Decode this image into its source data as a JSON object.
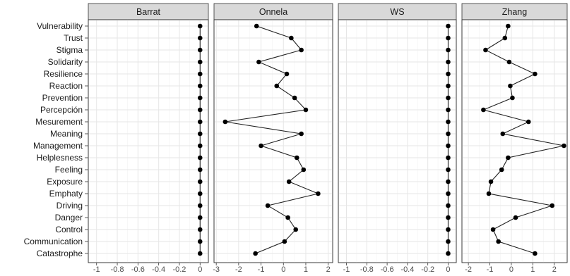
{
  "chart_data": {
    "type": "scatter",
    "connected": true,
    "facets": [
      "Barrat",
      "Onnela",
      "WS",
      "Zhang"
    ],
    "categories": [
      "Vulnerability",
      "Trust",
      "Stigma",
      "Solidarity",
      "Resilience",
      "Reaction",
      "Prevention",
      "Percepción",
      "Mesurement",
      "Meaning",
      "Management",
      "Helplesness",
      "Feeling",
      "Exposure",
      "Emphaty",
      "Driving",
      "Danger",
      "Control",
      "Communication",
      "Catastrophe"
    ],
    "panels": [
      {
        "facet": "Barrat",
        "xlim": [
          -1.08,
          0.08
        ],
        "ticks": [
          -1,
          -0.8,
          -0.6,
          -0.4,
          -0.2,
          0
        ],
        "tick_labels": [
          "-1",
          "-0.8",
          "-0.6",
          "-0.4",
          "-0.2",
          "0"
        ],
        "values": [
          0,
          0,
          0,
          0,
          0,
          0,
          0,
          0,
          0,
          0,
          0,
          0,
          0,
          0,
          0,
          0,
          0,
          0,
          0,
          0
        ]
      },
      {
        "facet": "Onnela",
        "xlim": [
          -3.1,
          2.2
        ],
        "ticks": [
          -3,
          -2,
          -1,
          0,
          1,
          2
        ],
        "tick_labels": [
          "-3",
          "-2",
          "-1",
          "0",
          "1",
          "2"
        ],
        "values": [
          -1.2,
          0.35,
          0.8,
          -1.1,
          0.15,
          -0.3,
          0.5,
          1.0,
          -2.6,
          0.8,
          -1.0,
          0.6,
          0.9,
          0.25,
          1.55,
          -0.7,
          0.2,
          0.55,
          0.05,
          -1.25
        ]
      },
      {
        "facet": "WS",
        "xlim": [
          -1.08,
          0.08
        ],
        "ticks": [
          -1,
          -0.8,
          -0.6,
          -0.4,
          -0.2,
          0
        ],
        "tick_labels": [
          "-1",
          "-0.8",
          "-0.6",
          "-0.4",
          "-0.2",
          "0"
        ],
        "values": [
          0,
          0,
          0,
          0,
          0,
          0,
          0,
          0,
          0,
          0,
          0,
          0,
          0,
          0,
          0,
          0,
          0,
          0,
          0,
          0
        ]
      },
      {
        "facet": "Zhang",
        "xlim": [
          -2.3,
          2.6
        ],
        "ticks": [
          -2,
          -1,
          0,
          1,
          2
        ],
        "tick_labels": [
          "-2",
          "-1",
          "0",
          "1",
          "2"
        ],
        "values": [
          -0.15,
          -0.3,
          -1.2,
          -0.1,
          1.1,
          -0.05,
          0.05,
          -1.3,
          0.8,
          -0.4,
          2.45,
          -0.15,
          -0.45,
          -0.95,
          -1.05,
          1.9,
          0.2,
          -0.85,
          -0.6,
          1.1
        ]
      }
    ],
    "grid": true,
    "legend": "none",
    "title": "",
    "xlabel": "",
    "ylabel": ""
  }
}
